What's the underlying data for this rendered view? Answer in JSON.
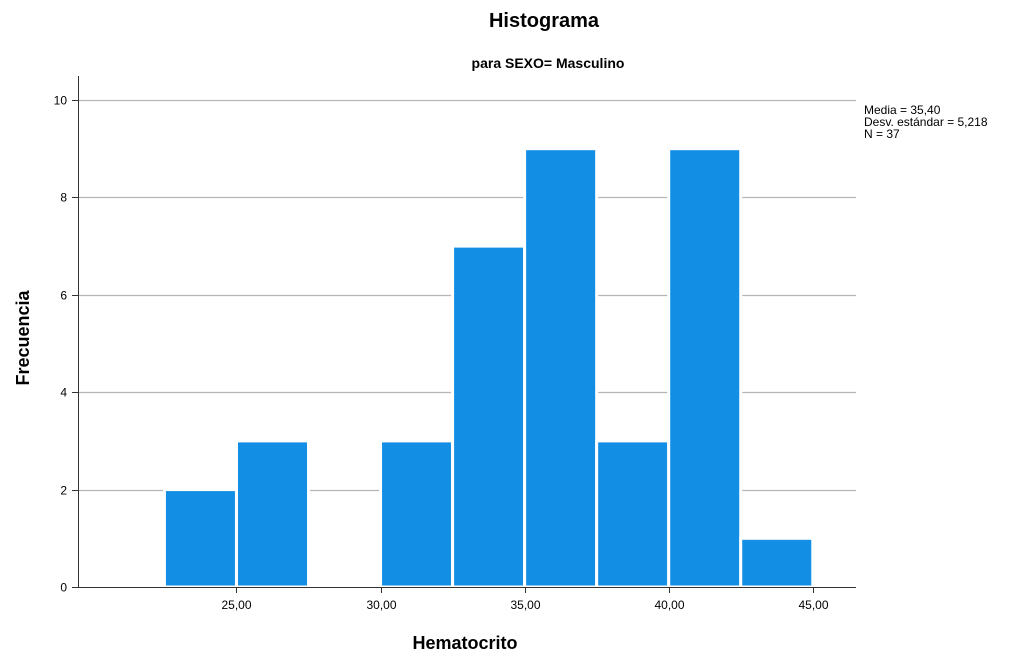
{
  "chart_data": {
    "type": "bar",
    "title": "Histograma",
    "subtitle": "para SEXO= Masculino",
    "xlabel": "Hematocrito",
    "ylabel": "Frecuencia",
    "x_ticks": [
      25.0,
      30.0,
      35.0,
      40.0,
      45.0
    ],
    "x_tick_labels": [
      "25,00",
      "30,00",
      "35,00",
      "40,00",
      "45,00"
    ],
    "y_ticks": [
      0,
      2,
      4,
      6,
      8,
      10
    ],
    "y_tick_labels": [
      "0",
      "2",
      "4",
      "6",
      "8",
      "10"
    ],
    "xlim": [
      19.5,
      46.5
    ],
    "ylim": [
      0,
      10.5
    ],
    "bins": [
      {
        "start": 22.5,
        "end": 25.0,
        "count": 2
      },
      {
        "start": 25.0,
        "end": 27.5,
        "count": 3
      },
      {
        "start": 27.5,
        "end": 30.0,
        "count": 0
      },
      {
        "start": 30.0,
        "end": 32.5,
        "count": 3
      },
      {
        "start": 32.5,
        "end": 35.0,
        "count": 7
      },
      {
        "start": 35.0,
        "end": 37.5,
        "count": 9
      },
      {
        "start": 37.5,
        "end": 40.0,
        "count": 3
      },
      {
        "start": 40.0,
        "end": 42.5,
        "count": 9
      },
      {
        "start": 42.5,
        "end": 45.0,
        "count": 1
      }
    ],
    "stats": {
      "media": "Media = 35,40",
      "desv": "Desv. estándar = 5,218",
      "n": "N = 37"
    },
    "grid": true,
    "colors": {
      "bar": "#128EE5",
      "grid": "#B5B5B5",
      "axis": "#333333"
    }
  }
}
